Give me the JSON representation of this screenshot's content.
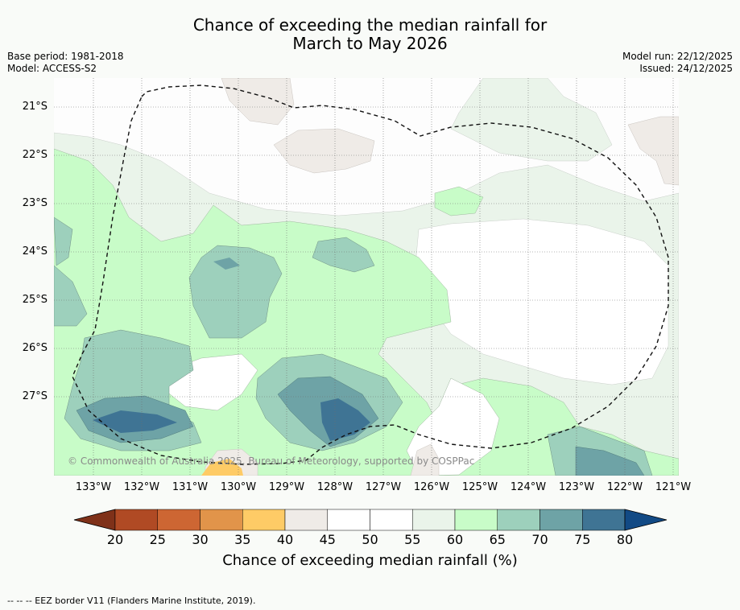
{
  "title": {
    "line1": "Chance of exceeding the median rainfall for",
    "line2": "March to May 2026"
  },
  "meta": {
    "base_period": "Base period: 1981-2018",
    "model": "Model: ACCESS-S2",
    "model_run": "Model run: 22/12/2025",
    "issued": "Issued: 24/12/2025"
  },
  "map": {
    "lat_labels": [
      "21°S",
      "22°S",
      "23°S",
      "24°S",
      "25°S",
      "26°S",
      "27°S"
    ],
    "lon_labels": [
      "133°W",
      "132°W",
      "131°W",
      "130°W",
      "129°W",
      "128°W",
      "127°W",
      "126°W",
      "125°W",
      "124°W",
      "123°W",
      "122°W",
      "121°W"
    ],
    "copyright": "© Commonwealth of Australia 2025, Bureau of Meteorology, supported by COSPPac"
  },
  "colorbar": {
    "title": "Chance of exceeding median rainfall (%)",
    "ticks": [
      "20",
      "25",
      "30",
      "35",
      "40",
      "45",
      "50",
      "55",
      "60",
      "65",
      "70",
      "75",
      "80"
    ],
    "colors": [
      "#b04a24",
      "#cd6633",
      "#e1944a",
      "#fecb66",
      "#efebe7",
      "#ffffff",
      "#ffffff",
      "#eaf4ea",
      "#c8fcc8",
      "#9dd0bc",
      "#6ea3a6",
      "#3f7494"
    ],
    "under_color": "#7f3119",
    "over_color": "#124a85"
  },
  "footer": "--  --  -- EEZ border V11 (Flanders Marine Institute, 2019)."
}
